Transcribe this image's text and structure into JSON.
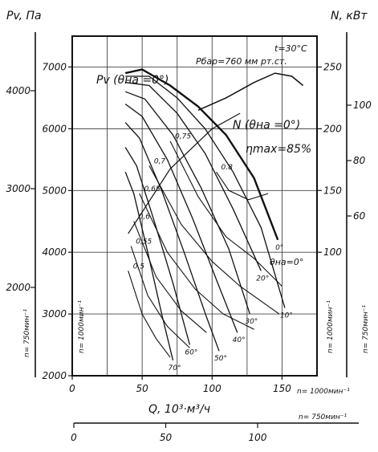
{
  "chart_data": {
    "type": "line",
    "title": "",
    "conditions": [
      "t=30°C",
      "Pбар=760 мм рт.ст."
    ],
    "xlabel": "Q, 10³·м³/ч",
    "ylabel_left": "Pv, Па",
    "ylabel_right": "N, кВт",
    "x_axis_main": {
      "ticks": [
        0,
        50,
        100,
        150
      ],
      "range": [
        0,
        175
      ],
      "speed_label": "n= 1000мин⁻¹"
    },
    "x_axis_secondary": {
      "ticks": [
        0,
        50,
        100
      ],
      "speed_label": "n= 750мин⁻¹"
    },
    "y_axis_pressure_1000": {
      "ticks": [
        2000,
        3000,
        4000,
        5000,
        6000,
        7000
      ],
      "range": [
        2000,
        7500
      ],
      "speed_label": "n= 1000мин⁻¹"
    },
    "y_axis_pressure_750": {
      "ticks": [
        2000,
        3000,
        4000
      ],
      "speed_label": "n= 750мин⁻¹"
    },
    "y_axis_power_1000": {
      "ticks": [
        100,
        150,
        200,
        250
      ],
      "speed_label": "n= 1000мин⁻¹"
    },
    "y_axis_power_750": {
      "ticks": [
        60,
        80,
        100
      ],
      "speed_label": "n= 750мин⁻¹"
    },
    "curve_labels": {
      "pressure_main": "Pv (θна =0°)",
      "power_main": "N (θна =0°)",
      "eta_max": "ηmax=85%",
      "vane_zero": "θна=0°"
    },
    "grid": true,
    "vane_angles": [
      {
        "label": "0°",
        "points": [
          [
            38,
            6900
          ],
          [
            50,
            6960
          ],
          [
            70,
            6700
          ],
          [
            90,
            6360
          ],
          [
            110,
            5900
          ],
          [
            130,
            5200
          ],
          [
            147,
            4200
          ]
        ]
      },
      {
        "label": "10°",
        "points": [
          [
            38,
            6850
          ],
          [
            55,
            6850
          ],
          [
            75,
            6500
          ],
          [
            95,
            6000
          ],
          [
            115,
            5300
          ],
          [
            135,
            4400
          ],
          [
            152,
            3100
          ]
        ]
      },
      {
        "label": "20°",
        "points": [
          [
            38,
            6750
          ],
          [
            55,
            6700
          ],
          [
            75,
            6250
          ],
          [
            95,
            5600
          ],
          [
            115,
            4700
          ],
          [
            135,
            3700
          ]
        ]
      },
      {
        "label": "30°",
        "points": [
          [
            38,
            6600
          ],
          [
            52,
            6480
          ],
          [
            72,
            5900
          ],
          [
            92,
            5050
          ],
          [
            112,
            4050
          ],
          [
            127,
            3000
          ]
        ]
      },
      {
        "label": "40°",
        "points": [
          [
            38,
            6400
          ],
          [
            50,
            6200
          ],
          [
            68,
            5500
          ],
          [
            86,
            4550
          ],
          [
            104,
            3500
          ],
          [
            118,
            2700
          ]
        ]
      },
      {
        "label": "50°",
        "points": [
          [
            38,
            6100
          ],
          [
            48,
            5850
          ],
          [
            64,
            5000
          ],
          [
            80,
            4000
          ],
          [
            96,
            2950
          ],
          [
            105,
            2400
          ]
        ]
      },
      {
        "label": "60°",
        "points": [
          [
            38,
            5700
          ],
          [
            46,
            5400
          ],
          [
            58,
            4550
          ],
          [
            72,
            3500
          ],
          [
            84,
            2500
          ]
        ]
      },
      {
        "label": "70°",
        "points": [
          [
            38,
            5300
          ],
          [
            44,
            4950
          ],
          [
            54,
            4000
          ],
          [
            64,
            3000
          ],
          [
            72,
            2250
          ]
        ]
      }
    ],
    "efficiency_levels": [
      {
        "label": "0.8",
        "points": [
          [
            103,
            5300
          ],
          [
            112,
            5000
          ],
          [
            126,
            4850
          ],
          [
            140,
            4950
          ]
        ]
      },
      {
        "label": "0,75",
        "points": [
          [
            70,
            5800
          ],
          [
            90,
            4900
          ],
          [
            110,
            4250
          ],
          [
            130,
            3900
          ],
          [
            150,
            3450
          ]
        ]
      },
      {
        "label": "0,7",
        "points": [
          [
            55,
            5400
          ],
          [
            78,
            4450
          ],
          [
            100,
            3850
          ],
          [
            120,
            3450
          ],
          [
            148,
            3000
          ]
        ]
      },
      {
        "label": "0,65",
        "points": [
          [
            48,
            4950
          ],
          [
            68,
            4000
          ],
          [
            88,
            3400
          ],
          [
            108,
            3000
          ],
          [
            130,
            2750
          ]
        ]
      },
      {
        "label": "0,6",
        "points": [
          [
            44,
            4500
          ],
          [
            60,
            3600
          ],
          [
            78,
            3050
          ],
          [
            96,
            2700
          ]
        ]
      },
      {
        "label": "0,55",
        "points": [
          [
            42,
            4100
          ],
          [
            54,
            3300
          ],
          [
            68,
            2800
          ],
          [
            84,
            2450
          ]
        ]
      },
      {
        "label": "0,5",
        "points": [
          [
            40,
            3700
          ],
          [
            50,
            3000
          ],
          [
            60,
            2600
          ],
          [
            70,
            2300
          ]
        ]
      }
    ],
    "eta_max_line": [
      [
        40,
        4300
      ],
      [
        70,
        5350
      ],
      [
        100,
        6000
      ],
      [
        120,
        6250
      ]
    ],
    "power_curve": [
      [
        90,
        6300
      ],
      [
        110,
        6500
      ],
      [
        130,
        6750
      ],
      [
        145,
        6900
      ],
      [
        157,
        6850
      ],
      [
        165,
        6700
      ]
    ]
  }
}
